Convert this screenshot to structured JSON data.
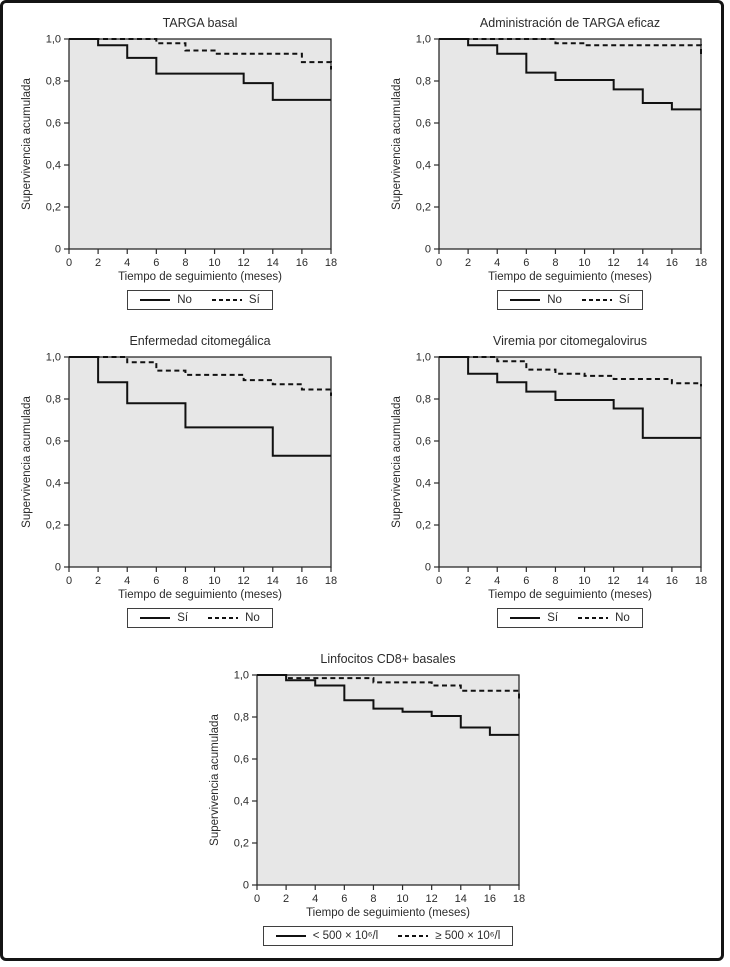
{
  "colors": {
    "curve": "#111111",
    "plot_background": "#e7e7e7",
    "axis_text": "#2b2b2b",
    "page_background": "#ffffff",
    "figure_border": "#141414"
  },
  "chart_data": [
    {
      "type": "line",
      "step": true,
      "title": "TARGA basal",
      "xlabel": "Tiempo de seguimiento (meses)",
      "ylabel": "Supervivencia acumulada",
      "xlim": [
        0,
        18
      ],
      "ylim": [
        0,
        1
      ],
      "xticks": [
        0,
        2,
        4,
        6,
        8,
        10,
        12,
        14,
        16,
        18
      ],
      "xtick_labels": [
        "0",
        "2",
        "4",
        "6",
        "8",
        "10",
        "12",
        "14",
        "16",
        "18"
      ],
      "yticks": [
        0,
        0.2,
        0.4,
        0.6,
        0.8,
        1.0
      ],
      "ytick_labels": [
        "0",
        "0,2",
        "0,4",
        "0,6",
        "0,8",
        "1,0"
      ],
      "grid": false,
      "legend_position": "bottom",
      "series": [
        {
          "name": "No",
          "style": "solid",
          "points": [
            [
              0,
              1.0
            ],
            [
              2,
              0.97
            ],
            [
              4,
              0.91
            ],
            [
              6,
              0.835
            ],
            [
              12,
              0.79
            ],
            [
              14,
              0.71
            ]
          ]
        },
        {
          "name": "Sí",
          "style": "dashed",
          "points": [
            [
              0,
              1.0
            ],
            [
              6,
              0.98
            ],
            [
              8,
              0.945
            ],
            [
              10,
              0.93
            ],
            [
              16,
              0.89
            ],
            [
              18,
              0.855
            ]
          ]
        }
      ]
    },
    {
      "type": "line",
      "step": true,
      "title": "Administración de TARGA eficaz",
      "xlabel": "Tiempo de seguimiento (meses)",
      "ylabel": "Supervivencia acumulada",
      "xlim": [
        0,
        18
      ],
      "ylim": [
        0,
        1
      ],
      "xticks": [
        0,
        2,
        4,
        6,
        8,
        10,
        12,
        14,
        16,
        18
      ],
      "xtick_labels": [
        "0",
        "2",
        "4",
        "6",
        "8",
        "10",
        "12",
        "14",
        "16",
        "18"
      ],
      "yticks": [
        0,
        0.2,
        0.4,
        0.6,
        0.8,
        1.0
      ],
      "ytick_labels": [
        "0",
        "0,2",
        "0,4",
        "0,6",
        "0,8",
        "1,0"
      ],
      "grid": false,
      "legend_position": "bottom",
      "series": [
        {
          "name": "No",
          "style": "solid",
          "points": [
            [
              0,
              1.0
            ],
            [
              2,
              0.97
            ],
            [
              4,
              0.93
            ],
            [
              6,
              0.84
            ],
            [
              8,
              0.805
            ],
            [
              12,
              0.76
            ],
            [
              14,
              0.695
            ],
            [
              16,
              0.665
            ]
          ]
        },
        {
          "name": "Sí",
          "style": "dashed",
          "points": [
            [
              0,
              1.0
            ],
            [
              8,
              0.98
            ],
            [
              10,
              0.97
            ],
            [
              18,
              0.925
            ]
          ]
        }
      ]
    },
    {
      "type": "line",
      "step": true,
      "title": "Enfermedad citomegálica",
      "xlabel": "Tiempo de seguimiento (meses)",
      "ylabel": "Supervivencia acumulada",
      "xlim": [
        0,
        18
      ],
      "ylim": [
        0,
        1
      ],
      "xticks": [
        0,
        2,
        4,
        6,
        8,
        10,
        12,
        14,
        16,
        18
      ],
      "xtick_labels": [
        "0",
        "2",
        "4",
        "6",
        "8",
        "10",
        "12",
        "14",
        "16",
        "18"
      ],
      "yticks": [
        0,
        0.2,
        0.4,
        0.6,
        0.8,
        1.0
      ],
      "ytick_labels": [
        "0",
        "0,2",
        "0,4",
        "0,6",
        "0,8",
        "1,0"
      ],
      "grid": false,
      "legend_position": "bottom",
      "series": [
        {
          "name": "Sí",
          "style": "solid",
          "points": [
            [
              0,
              1.0
            ],
            [
              2,
              0.88
            ],
            [
              4,
              0.78
            ],
            [
              8,
              0.665
            ],
            [
              14,
              0.53
            ]
          ]
        },
        {
          "name": "No",
          "style": "dashed",
          "points": [
            [
              0,
              1.0
            ],
            [
              4,
              0.975
            ],
            [
              6,
              0.935
            ],
            [
              8,
              0.915
            ],
            [
              12,
              0.89
            ],
            [
              14,
              0.87
            ],
            [
              16,
              0.845
            ],
            [
              18,
              0.815
            ]
          ]
        }
      ]
    },
    {
      "type": "line",
      "step": true,
      "title": "Viremia por citomegalovirus",
      "xlabel": "Tiempo de seguimiento (meses)",
      "ylabel": "Supervivencia acumulada",
      "xlim": [
        0,
        18
      ],
      "ylim": [
        0,
        1
      ],
      "xticks": [
        0,
        2,
        4,
        6,
        8,
        10,
        12,
        14,
        16,
        18
      ],
      "xtick_labels": [
        "0",
        "2",
        "4",
        "6",
        "8",
        "10",
        "12",
        "14",
        "16",
        "18"
      ],
      "yticks": [
        0,
        0.2,
        0.4,
        0.6,
        0.8,
        1.0
      ],
      "ytick_labels": [
        "0",
        "0,2",
        "0,4",
        "0,6",
        "0,8",
        "1,0"
      ],
      "grid": false,
      "legend_position": "bottom",
      "series": [
        {
          "name": "Sí",
          "style": "solid",
          "points": [
            [
              0,
              1.0
            ],
            [
              2,
              0.92
            ],
            [
              4,
              0.88
            ],
            [
              6,
              0.835
            ],
            [
              8,
              0.795
            ],
            [
              12,
              0.755
            ],
            [
              14,
              0.615
            ]
          ]
        },
        {
          "name": "No",
          "style": "dashed",
          "points": [
            [
              0,
              1.0
            ],
            [
              4,
              0.98
            ],
            [
              6,
              0.94
            ],
            [
              8,
              0.92
            ],
            [
              10,
              0.91
            ],
            [
              12,
              0.895
            ],
            [
              16,
              0.875
            ],
            [
              18,
              0.86
            ]
          ]
        }
      ]
    },
    {
      "type": "line",
      "step": true,
      "title": "Linfocitos CD8+ basales",
      "xlabel": "Tiempo de seguimiento (meses)",
      "ylabel": "Supervivencia acumulada",
      "xlim": [
        0,
        18
      ],
      "ylim": [
        0,
        1
      ],
      "xticks": [
        0,
        2,
        4,
        6,
        8,
        10,
        12,
        14,
        16,
        18
      ],
      "xtick_labels": [
        "0",
        "2",
        "4",
        "6",
        "8",
        "10",
        "12",
        "14",
        "16",
        "18"
      ],
      "yticks": [
        0,
        0.2,
        0.4,
        0.6,
        0.8,
        1.0
      ],
      "ytick_labels": [
        "0",
        "0,2",
        "0,4",
        "0,6",
        "0,8",
        "1,0"
      ],
      "grid": false,
      "legend_position": "bottom",
      "series": [
        {
          "name": "< 500 × 10⁶/l",
          "style": "solid",
          "points": [
            [
              0,
              1.0
            ],
            [
              2,
              0.975
            ],
            [
              4,
              0.95
            ],
            [
              6,
              0.88
            ],
            [
              8,
              0.84
            ],
            [
              10,
              0.825
            ],
            [
              12,
              0.805
            ],
            [
              14,
              0.75
            ],
            [
              16,
              0.715
            ]
          ]
        },
        {
          "name": "≥ 500 × 10⁶/l",
          "style": "dashed",
          "points": [
            [
              0,
              1.0
            ],
            [
              2,
              0.985
            ],
            [
              8,
              0.965
            ],
            [
              12,
              0.95
            ],
            [
              14,
              0.925
            ],
            [
              18,
              0.885
            ]
          ]
        }
      ]
    }
  ]
}
